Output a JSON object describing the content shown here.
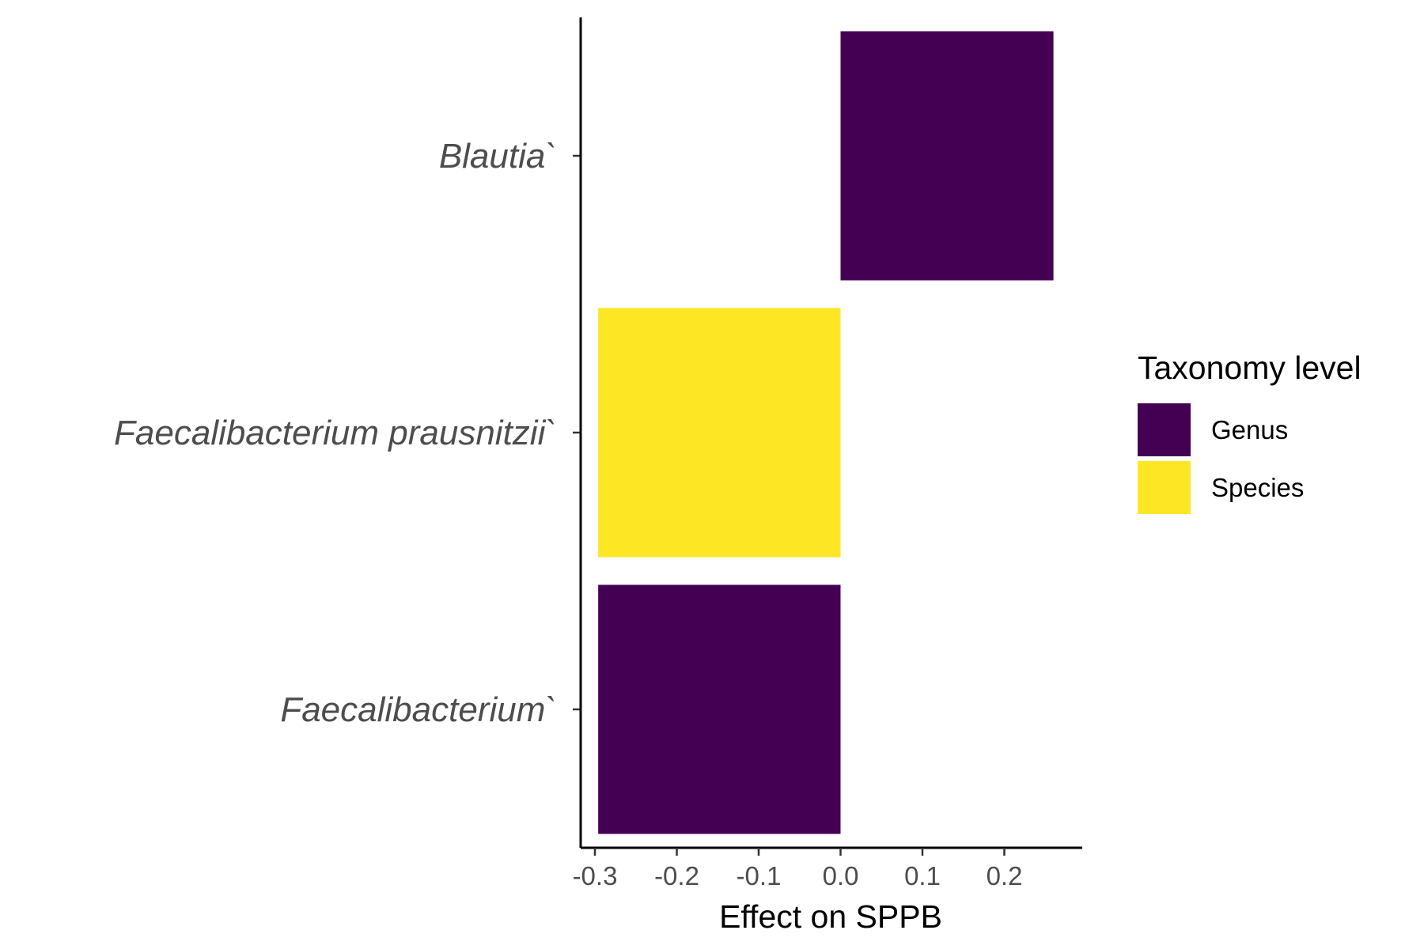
{
  "chart_data": {
    "type": "bar",
    "orientation": "horizontal",
    "categories": [
      "Blautia`",
      "Faecalibacterium prausnitzii`",
      "Faecalibacterium`"
    ],
    "values": [
      0.26,
      -0.296,
      -0.296
    ],
    "groups": [
      "Genus",
      "Species",
      "Genus"
    ],
    "xlabel": "Effect on SPPB",
    "ylabel": "",
    "xlim": [
      -0.31,
      0.29
    ],
    "x_ticks": [
      "-0.3",
      "-0.2",
      "-0.1",
      "0.0",
      "0.1",
      "0.2"
    ],
    "grid": false,
    "legend": {
      "title": "Taxonomy level",
      "placement": "right",
      "items": [
        {
          "label": "Genus",
          "color": "#440154"
        },
        {
          "label": "Species",
          "color": "#FDE725"
        }
      ]
    }
  }
}
